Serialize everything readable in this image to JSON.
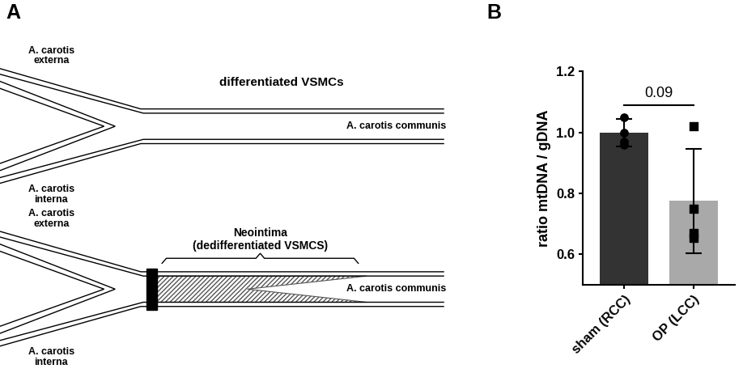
{
  "panel_labels": [
    "A",
    "B"
  ],
  "diagram": {
    "top": {
      "title": "differentiated VSMCs",
      "externa": "A. carotis\nexterna",
      "interna": "A. carotis\ninterna",
      "communis": "A. carotis communis"
    },
    "bottom": {
      "title": "Neointima\n(dedifferentiated VSMCS)",
      "externa": "A. carotis\nexterna",
      "interna": "A. carotis\ninterna",
      "communis": "A. carotis communis"
    }
  },
  "chart_data": {
    "type": "bar",
    "categories": [
      "sham (RCC)",
      "OP (LCC)"
    ],
    "values": [
      1.0,
      0.775
    ],
    "errors": [
      0.045,
      0.17
    ],
    "colors": [
      "#333333",
      "#a9a9aa"
    ],
    "points": [
      {
        "marker": "circle",
        "values": [
          1.05,
          1.0,
          0.96,
          0.97
        ]
      },
      {
        "marker": "square",
        "values": [
          1.02,
          0.75,
          0.655,
          0.67
        ]
      }
    ],
    "ylabel": "ratio mtDNA / gDNA",
    "ylim": [
      0.5,
      1.2
    ],
    "yticks": [
      {
        "value": 0.6,
        "label": "0.6"
      },
      {
        "value": 0.8,
        "label": "0.8"
      },
      {
        "value": 1.0,
        "label": "1.0"
      },
      {
        "value": 1.2,
        "label": "1.2"
      }
    ],
    "significance": {
      "label": "0.09",
      "y": 1.09
    }
  }
}
